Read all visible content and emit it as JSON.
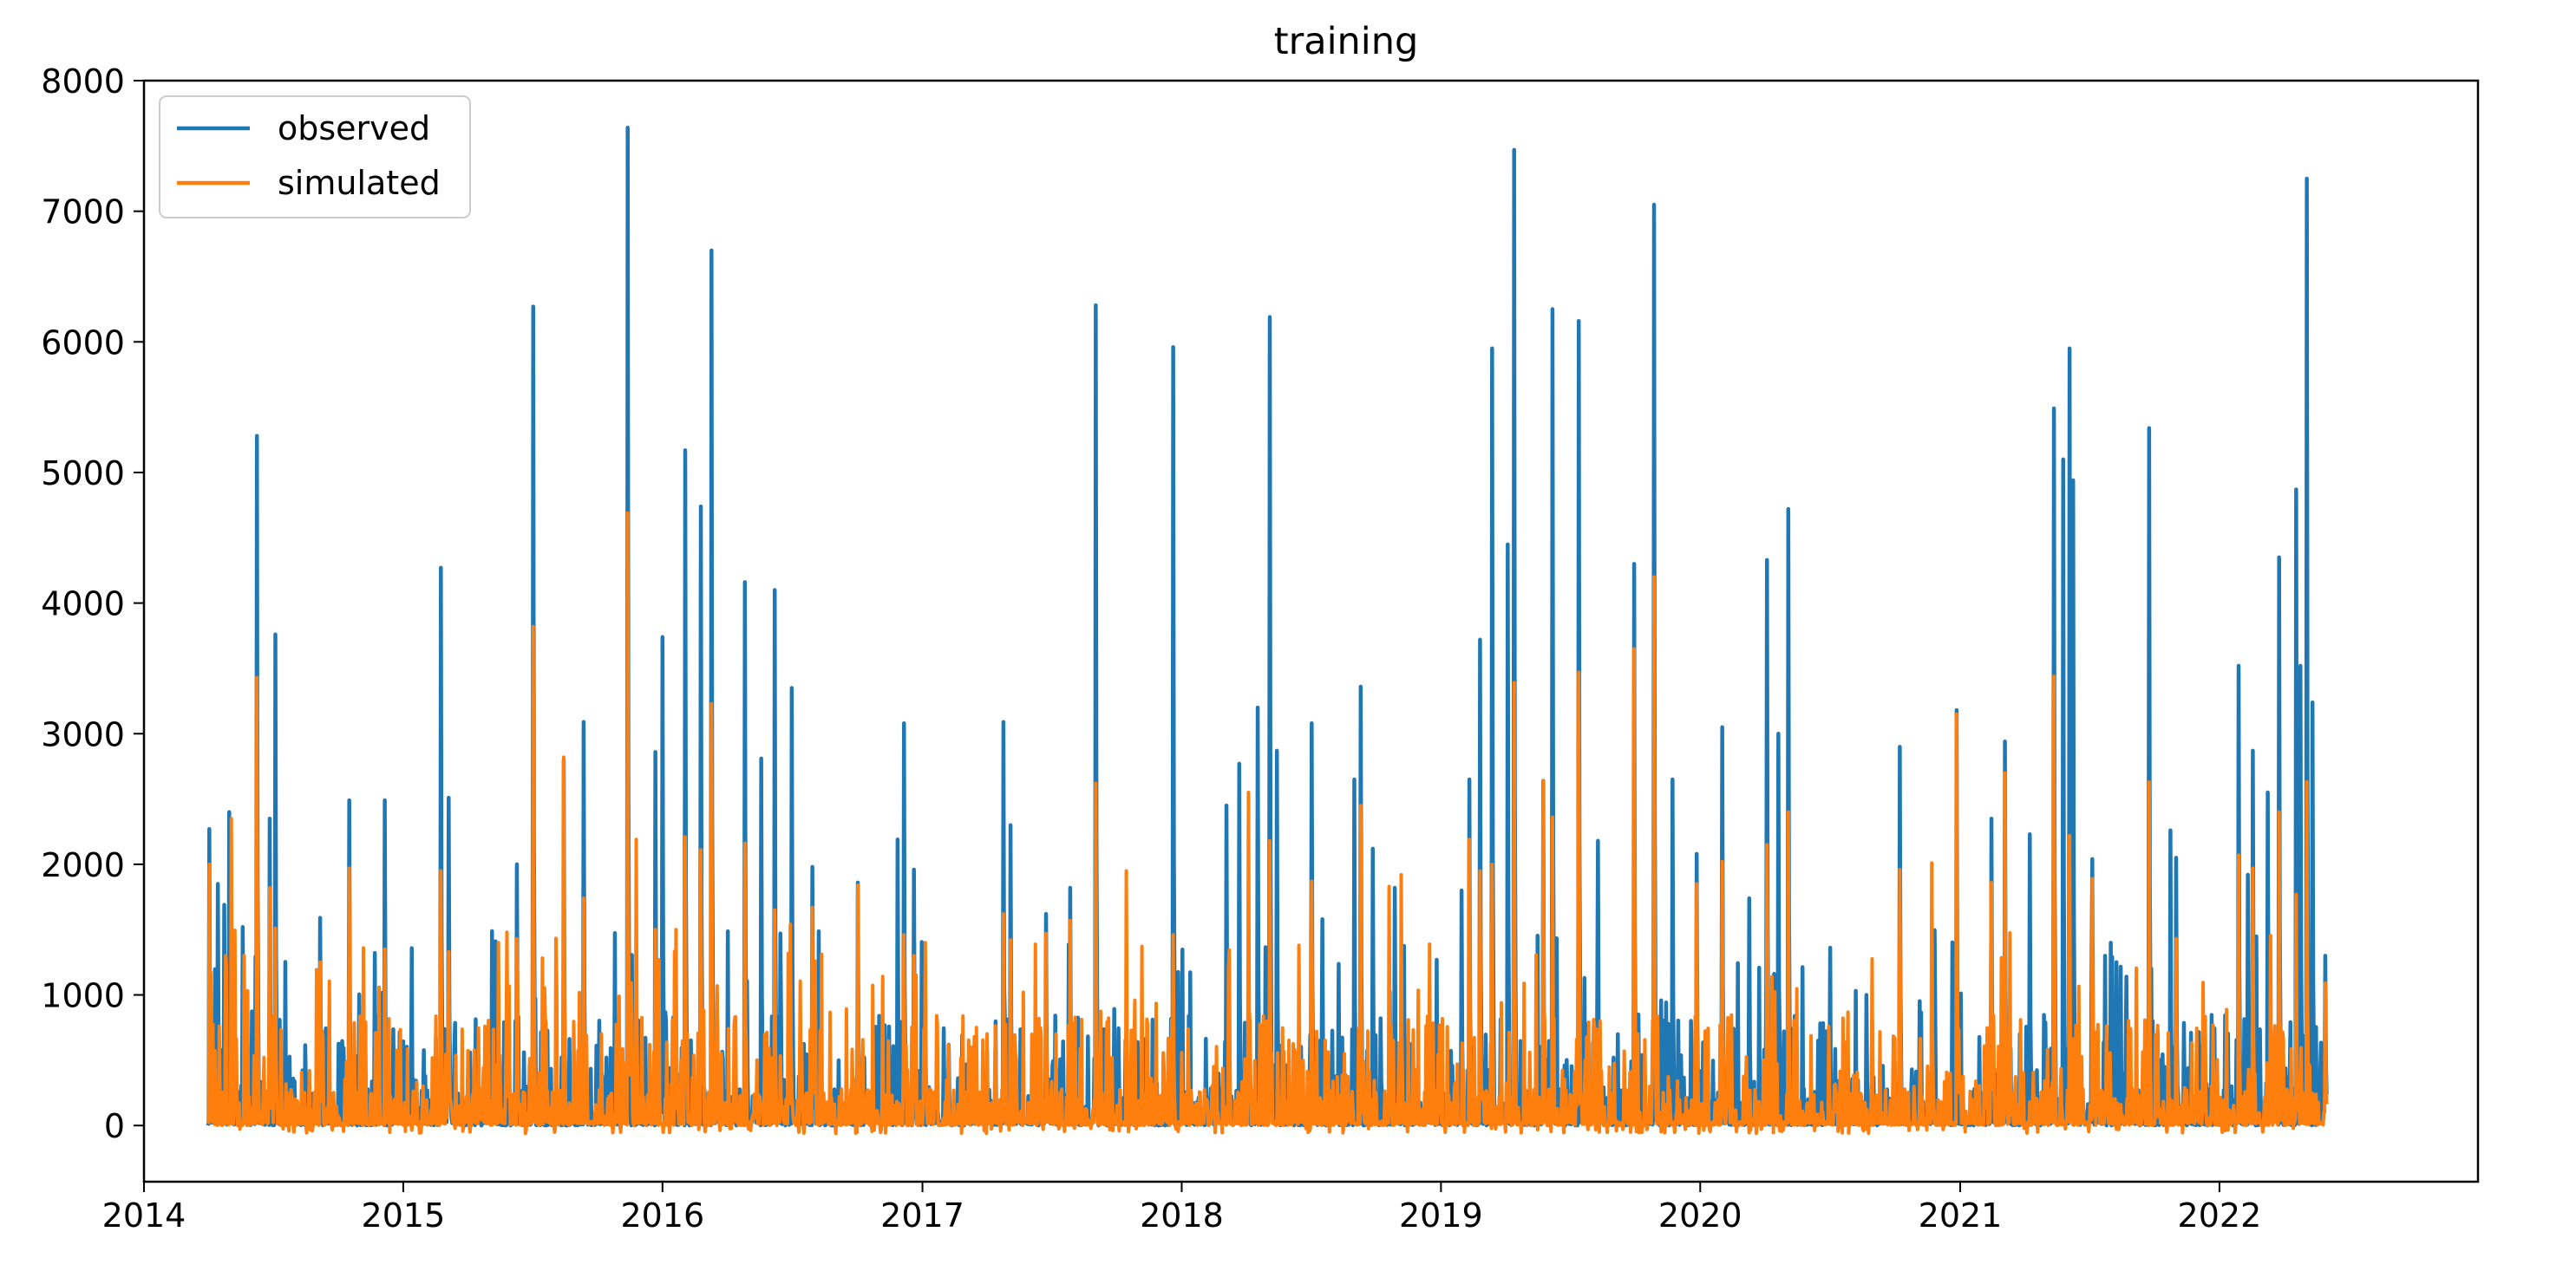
{
  "chart_data": {
    "type": "line",
    "title": "training",
    "xlabel": "",
    "ylabel": "",
    "x_ticks": [
      "2014",
      "2015",
      "2016",
      "2017",
      "2018",
      "2019",
      "2020",
      "2021",
      "2022"
    ],
    "x_range": [
      "2014-01-01",
      "2022-12-31"
    ],
    "x_data_range": [
      "2014-04-01",
      "2022-06-01"
    ],
    "y_ticks": [
      0,
      1000,
      2000,
      3000,
      4000,
      5000,
      6000,
      7000,
      8000
    ],
    "ylim": [
      -430,
      8000
    ],
    "legend_position": "top-left",
    "grid": false,
    "series": [
      {
        "name": "observed",
        "color": "#1f77b4",
        "peaks": [
          [
            "2014-04-03",
            2270
          ],
          [
            "2014-04-15",
            1850
          ],
          [
            "2014-04-24",
            1690
          ],
          [
            "2014-05-01",
            2400
          ],
          [
            "2014-05-20",
            1520
          ],
          [
            "2014-06-09",
            5280
          ],
          [
            "2014-06-27",
            2350
          ],
          [
            "2014-07-05",
            3760
          ],
          [
            "2014-09-06",
            1590
          ],
          [
            "2014-10-17",
            2490
          ],
          [
            "2014-12-06",
            2490
          ],
          [
            "2015-02-23",
            4270
          ],
          [
            "2015-03-06",
            2510
          ],
          [
            "2015-06-10",
            2000
          ],
          [
            "2015-07-03",
            6270
          ],
          [
            "2015-08-15",
            2800
          ],
          [
            "2015-09-12",
            3090
          ],
          [
            "2015-11-13",
            7640
          ],
          [
            "2015-12-22",
            2860
          ],
          [
            "2016-01-01",
            3740
          ],
          [
            "2016-02-02",
            5170
          ],
          [
            "2016-02-24",
            4740
          ],
          [
            "2016-03-10",
            6700
          ],
          [
            "2016-04-26",
            4160
          ],
          [
            "2016-05-19",
            2810
          ],
          [
            "2016-06-07",
            4100
          ],
          [
            "2016-07-01",
            3350
          ],
          [
            "2016-07-30",
            1980
          ],
          [
            "2016-10-02",
            1860
          ],
          [
            "2016-11-27",
            2190
          ],
          [
            "2016-12-06",
            3080
          ],
          [
            "2016-12-20",
            1960
          ],
          [
            "2017-04-25",
            3090
          ],
          [
            "2017-05-05",
            2300
          ],
          [
            "2017-06-24",
            1620
          ],
          [
            "2017-07-28",
            1820
          ],
          [
            "2017-09-02",
            6280
          ],
          [
            "2017-12-20",
            5960
          ],
          [
            "2018-03-05",
            2450
          ],
          [
            "2018-03-23",
            2770
          ],
          [
            "2018-04-18",
            3200
          ],
          [
            "2018-05-05",
            6190
          ],
          [
            "2018-05-15",
            2870
          ],
          [
            "2018-07-03",
            3080
          ],
          [
            "2018-07-18",
            1580
          ],
          [
            "2018-09-01",
            2650
          ],
          [
            "2018-09-10",
            3360
          ],
          [
            "2018-09-27",
            2120
          ],
          [
            "2018-10-28",
            1820
          ],
          [
            "2019-01-30",
            1800
          ],
          [
            "2019-02-10",
            2650
          ],
          [
            "2019-02-25",
            3720
          ],
          [
            "2019-03-14",
            5950
          ],
          [
            "2019-04-05",
            4450
          ],
          [
            "2019-04-14",
            7470
          ],
          [
            "2019-05-25",
            2640
          ],
          [
            "2019-06-07",
            6250
          ],
          [
            "2019-07-14",
            6160
          ],
          [
            "2019-08-10",
            2180
          ],
          [
            "2019-09-30",
            4300
          ],
          [
            "2019-10-28",
            7050
          ],
          [
            "2019-11-23",
            2650
          ],
          [
            "2019-12-27",
            2080
          ],
          [
            "2020-02-01",
            3050
          ],
          [
            "2020-03-10",
            1740
          ],
          [
            "2020-04-04",
            4330
          ],
          [
            "2020-04-20",
            3000
          ],
          [
            "2020-05-04",
            4720
          ],
          [
            "2020-06-15",
            650
          ],
          [
            "2020-08-22",
            1000
          ],
          [
            "2020-10-08",
            2900
          ],
          [
            "2020-12-27",
            3180
          ],
          [
            "2021-02-14",
            2350
          ],
          [
            "2021-03-05",
            2940
          ],
          [
            "2021-04-09",
            2230
          ],
          [
            "2021-05-13",
            5490
          ],
          [
            "2021-05-26",
            5100
          ],
          [
            "2021-06-04",
            5950
          ],
          [
            "2021-06-09",
            4940
          ],
          [
            "2021-07-06",
            2040
          ],
          [
            "2021-08-23",
            1140
          ],
          [
            "2021-09-24",
            5340
          ],
          [
            "2021-10-24",
            2260
          ],
          [
            "2021-11-01",
            2050
          ],
          [
            "2022-01-28",
            3520
          ],
          [
            "2022-02-10",
            1920
          ],
          [
            "2022-02-17",
            2870
          ],
          [
            "2022-03-10",
            2550
          ],
          [
            "2022-03-26",
            4350
          ],
          [
            "2022-04-19",
            4870
          ],
          [
            "2022-04-25",
            3520
          ],
          [
            "2022-05-04",
            7250
          ],
          [
            "2022-05-12",
            3240
          ],
          [
            "2022-05-30",
            1300
          ]
        ]
      },
      {
        "name": "simulated",
        "color": "#ff7f0e",
        "peaks": [
          [
            "2014-04-03",
            2000
          ],
          [
            "2014-04-26",
            1300
          ],
          [
            "2014-05-04",
            2350
          ],
          [
            "2014-05-22",
            1300
          ],
          [
            "2014-06-09",
            3430
          ],
          [
            "2014-06-27",
            1820
          ],
          [
            "2014-07-05",
            1510
          ],
          [
            "2014-09-06",
            1250
          ],
          [
            "2014-10-17",
            1970
          ],
          [
            "2014-11-06",
            1360
          ],
          [
            "2014-12-06",
            1350
          ],
          [
            "2015-02-23",
            1950
          ],
          [
            "2015-03-06",
            1330
          ],
          [
            "2015-05-15",
            1400
          ],
          [
            "2015-05-27",
            1480
          ],
          [
            "2015-06-10",
            1430
          ],
          [
            "2015-07-03",
            3820
          ],
          [
            "2015-08-15",
            2820
          ],
          [
            "2015-09-12",
            1740
          ],
          [
            "2015-11-13",
            4690
          ],
          [
            "2015-11-25",
            2190
          ],
          [
            "2015-12-22",
            1500
          ],
          [
            "2016-01-20",
            1500
          ],
          [
            "2016-02-02",
            2210
          ],
          [
            "2016-02-24",
            2110
          ],
          [
            "2016-03-10",
            3230
          ],
          [
            "2016-04-26",
            2160
          ],
          [
            "2016-06-07",
            1650
          ],
          [
            "2016-06-29",
            1540
          ],
          [
            "2016-07-30",
            1670
          ],
          [
            "2016-10-02",
            1840
          ],
          [
            "2016-12-06",
            1460
          ],
          [
            "2016-12-20",
            1300
          ],
          [
            "2017-01-05",
            1400
          ],
          [
            "2017-04-25",
            1620
          ],
          [
            "2017-05-05",
            1420
          ],
          [
            "2017-06-24",
            1470
          ],
          [
            "2017-07-28",
            1570
          ],
          [
            "2017-09-02",
            2620
          ],
          [
            "2017-10-15",
            1950
          ],
          [
            "2017-12-20",
            1460
          ],
          [
            "2018-04-05",
            2550
          ],
          [
            "2018-05-05",
            2180
          ],
          [
            "2018-06-15",
            1380
          ],
          [
            "2018-07-03",
            1870
          ],
          [
            "2018-09-10",
            2450
          ],
          [
            "2018-10-20",
            1830
          ],
          [
            "2018-11-06",
            1920
          ],
          [
            "2019-02-10",
            2190
          ],
          [
            "2019-02-25",
            1950
          ],
          [
            "2019-03-14",
            2000
          ],
          [
            "2019-04-14",
            3390
          ],
          [
            "2019-05-25",
            2640
          ],
          [
            "2019-06-07",
            2360
          ],
          [
            "2019-07-14",
            3470
          ],
          [
            "2019-09-30",
            3650
          ],
          [
            "2019-10-28",
            4200
          ],
          [
            "2019-12-27",
            1850
          ],
          [
            "2020-02-01",
            2020
          ],
          [
            "2020-04-04",
            2150
          ],
          [
            "2020-05-04",
            2400
          ],
          [
            "2020-10-08",
            1960
          ],
          [
            "2020-11-22",
            2010
          ],
          [
            "2020-12-27",
            3150
          ],
          [
            "2021-02-14",
            1860
          ],
          [
            "2021-03-05",
            2700
          ],
          [
            "2021-05-13",
            3440
          ],
          [
            "2021-06-04",
            2220
          ],
          [
            "2021-07-06",
            1890
          ],
          [
            "2021-09-24",
            2630
          ],
          [
            "2021-11-01",
            1430
          ],
          [
            "2022-01-28",
            2070
          ],
          [
            "2022-02-17",
            1970
          ],
          [
            "2022-03-26",
            2400
          ],
          [
            "2022-04-19",
            1770
          ],
          [
            "2022-05-04",
            2630
          ],
          [
            "2022-05-30",
            1090
          ]
        ]
      }
    ]
  }
}
